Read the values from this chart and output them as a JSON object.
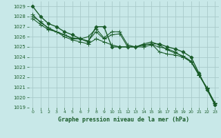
{
  "title": "Graphe pression niveau de la mer (hPa)",
  "bg_color": "#c8e8e8",
  "grid_color": "#a8caca",
  "line_color": "#1a5c2a",
  "xlim": [
    -0.5,
    23.5
  ],
  "ylim": [
    1019,
    1029.5
  ],
  "yticks": [
    1019,
    1020,
    1021,
    1022,
    1023,
    1024,
    1025,
    1026,
    1027,
    1028,
    1029
  ],
  "xticks": [
    0,
    1,
    2,
    3,
    4,
    5,
    6,
    7,
    8,
    9,
    10,
    11,
    12,
    13,
    14,
    15,
    16,
    17,
    18,
    19,
    20,
    21,
    22,
    23
  ],
  "series": [
    {
      "x": [
        0,
        1,
        2,
        3,
        4,
        5,
        6,
        7,
        8,
        9,
        10,
        11,
        12,
        13,
        14,
        15,
        16,
        17,
        18,
        19,
        20,
        21,
        22,
        23
      ],
      "y": [
        1029.0,
        1028.0,
        1027.3,
        1027.0,
        1026.5,
        1026.2,
        1025.8,
        1025.5,
        1027.0,
        1027.0,
        1025.0,
        1025.0,
        1025.0,
        1025.0,
        1025.2,
        1025.3,
        1025.3,
        1025.0,
        1024.8,
        1024.5,
        1024.0,
        1022.4,
        1020.8,
        1019.3
      ],
      "marker": "D",
      "markersize": 2.5,
      "linewidth": 1.0
    },
    {
      "x": [
        0,
        1,
        2,
        3,
        4,
        5,
        6,
        7,
        8,
        9,
        10,
        11,
        12,
        13,
        14,
        15,
        16,
        17,
        18,
        19,
        20,
        21,
        22,
        23
      ],
      "y": [
        1028.0,
        1027.5,
        1026.8,
        1026.5,
        1026.2,
        1025.8,
        1025.8,
        1026.0,
        1026.8,
        1025.9,
        1026.5,
        1026.5,
        1025.2,
        1025.0,
        1025.2,
        1025.3,
        1024.5,
        1024.3,
        1024.2,
        1024.0,
        1023.6,
        1022.3,
        1020.9,
        1019.4
      ],
      "marker": "+",
      "markersize": 4,
      "linewidth": 0.8
    },
    {
      "x": [
        0,
        1,
        2,
        3,
        4,
        5,
        6,
        7,
        8,
        9,
        10,
        11,
        12,
        13,
        14,
        15,
        16,
        17,
        18,
        19,
        20,
        21,
        22,
        23
      ],
      "y": [
        1027.8,
        1027.2,
        1026.7,
        1026.5,
        1026.2,
        1025.9,
        1025.8,
        1025.6,
        1026.5,
        1025.8,
        1026.2,
        1026.3,
        1025.0,
        1025.0,
        1025.0,
        1025.2,
        1025.0,
        1024.8,
        1024.5,
        1024.0,
        1023.5,
        1022.2,
        1021.0,
        1019.4
      ],
      "marker": "+",
      "markersize": 4,
      "linewidth": 0.8
    },
    {
      "x": [
        0,
        1,
        2,
        3,
        4,
        5,
        6,
        7,
        8,
        9,
        10,
        11,
        12,
        13,
        14,
        15,
        16,
        17,
        18,
        19,
        20,
        21,
        22,
        23
      ],
      "y": [
        1028.2,
        1027.4,
        1026.9,
        1026.5,
        1026.0,
        1025.7,
        1025.5,
        1025.3,
        1025.8,
        1025.5,
        1025.2,
        1025.0,
        1025.0,
        1025.0,
        1025.3,
        1025.5,
        1025.2,
        1024.7,
        1024.4,
        1024.1,
        1023.6,
        1022.2,
        1020.9,
        1019.5
      ],
      "marker": "+",
      "markersize": 4,
      "linewidth": 0.8
    }
  ]
}
